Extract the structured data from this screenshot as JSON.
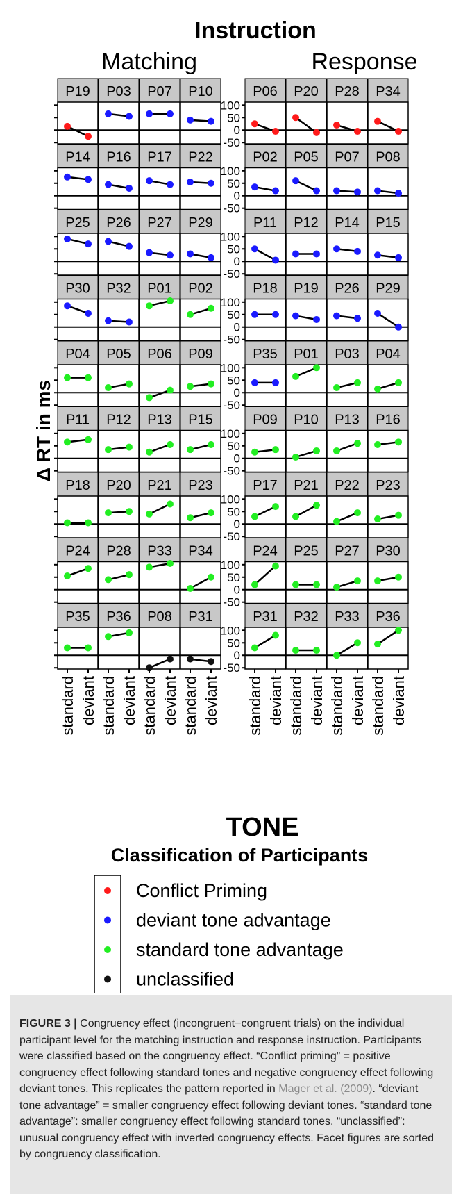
{
  "chart_data": {
    "type": "line",
    "title": "Instruction",
    "xlabel": "TONE",
    "ylabel": "Δ RT in ms",
    "x_categories": [
      "standard",
      "deviant"
    ],
    "y_ticks": [
      -50,
      0,
      50,
      100
    ],
    "ylim": [
      -55,
      112
    ],
    "panels": [
      {
        "name": "Matching",
        "rows": [
          [
            {
              "id": "P19",
              "class": "conflict",
              "values": [
                15,
                -25
              ]
            },
            {
              "id": "P03",
              "class": "deviant",
              "values": [
                65,
                55
              ]
            },
            {
              "id": "P07",
              "class": "deviant",
              "values": [
                65,
                65
              ]
            },
            {
              "id": "P10",
              "class": "deviant",
              "values": [
                40,
                35
              ]
            }
          ],
          [
            {
              "id": "P14",
              "class": "deviant",
              "values": [
                75,
                65
              ]
            },
            {
              "id": "P16",
              "class": "deviant",
              "values": [
                45,
                30
              ]
            },
            {
              "id": "P17",
              "class": "deviant",
              "values": [
                60,
                45
              ]
            },
            {
              "id": "P22",
              "class": "deviant",
              "values": [
                55,
                50
              ]
            }
          ],
          [
            {
              "id": "P25",
              "class": "deviant",
              "values": [
                90,
                70
              ]
            },
            {
              "id": "P26",
              "class": "deviant",
              "values": [
                80,
                60
              ]
            },
            {
              "id": "P27",
              "class": "deviant",
              "values": [
                35,
                25
              ]
            },
            {
              "id": "P29",
              "class": "deviant",
              "values": [
                30,
                15
              ]
            }
          ],
          [
            {
              "id": "P30",
              "class": "deviant",
              "values": [
                85,
                55
              ]
            },
            {
              "id": "P32",
              "class": "deviant",
              "values": [
                25,
                20
              ]
            },
            {
              "id": "P01",
              "class": "standard",
              "values": [
                85,
                105
              ]
            },
            {
              "id": "P02",
              "class": "standard",
              "values": [
                50,
                75
              ]
            }
          ],
          [
            {
              "id": "P04",
              "class": "standard",
              "values": [
                60,
                60
              ]
            },
            {
              "id": "P05",
              "class": "standard",
              "values": [
                20,
                35
              ]
            },
            {
              "id": "P06",
              "class": "standard",
              "values": [
                -20,
                10
              ]
            },
            {
              "id": "P09",
              "class": "standard",
              "values": [
                25,
                35
              ]
            }
          ],
          [
            {
              "id": "P11",
              "class": "standard",
              "values": [
                65,
                75
              ]
            },
            {
              "id": "P12",
              "class": "standard",
              "values": [
                35,
                45
              ]
            },
            {
              "id": "P13",
              "class": "standard",
              "values": [
                25,
                55
              ]
            },
            {
              "id": "P15",
              "class": "standard",
              "values": [
                35,
                55
              ]
            }
          ],
          [
            {
              "id": "P18",
              "class": "standard",
              "values": [
                5,
                5
              ]
            },
            {
              "id": "P20",
              "class": "standard",
              "values": [
                45,
                50
              ]
            },
            {
              "id": "P21",
              "class": "standard",
              "values": [
                40,
                80
              ]
            },
            {
              "id": "P23",
              "class": "standard",
              "values": [
                25,
                45
              ]
            }
          ],
          [
            {
              "id": "P24",
              "class": "standard",
              "values": [
                55,
                85
              ]
            },
            {
              "id": "P28",
              "class": "standard",
              "values": [
                40,
                60
              ]
            },
            {
              "id": "P33",
              "class": "standard",
              "values": [
                90,
                105
              ]
            },
            {
              "id": "P34",
              "class": "standard",
              "values": [
                5,
                50
              ]
            }
          ],
          [
            {
              "id": "P35",
              "class": "standard",
              "values": [
                30,
                30
              ]
            },
            {
              "id": "P36",
              "class": "standard",
              "values": [
                75,
                90
              ]
            },
            {
              "id": "P08",
              "class": "unclassified",
              "values": [
                -50,
                -15
              ]
            },
            {
              "id": "P31",
              "class": "unclassified",
              "values": [
                -15,
                -25
              ]
            }
          ]
        ]
      },
      {
        "name": "Response",
        "rows": [
          [
            {
              "id": "P06",
              "class": "conflict",
              "values": [
                25,
                -5
              ]
            },
            {
              "id": "P20",
              "class": "conflict",
              "values": [
                50,
                -10
              ]
            },
            {
              "id": "P28",
              "class": "conflict",
              "values": [
                20,
                -5
              ]
            },
            {
              "id": "P34",
              "class": "conflict",
              "values": [
                35,
                -5
              ]
            }
          ],
          [
            {
              "id": "P02",
              "class": "deviant",
              "values": [
                35,
                20
              ]
            },
            {
              "id": "P05",
              "class": "deviant",
              "values": [
                60,
                20
              ]
            },
            {
              "id": "P07",
              "class": "deviant",
              "values": [
                20,
                15
              ]
            },
            {
              "id": "P08",
              "class": "deviant",
              "values": [
                20,
                10
              ]
            }
          ],
          [
            {
              "id": "P11",
              "class": "deviant",
              "values": [
                50,
                5
              ]
            },
            {
              "id": "P12",
              "class": "deviant",
              "values": [
                30,
                30
              ]
            },
            {
              "id": "P14",
              "class": "deviant",
              "values": [
                50,
                40
              ]
            },
            {
              "id": "P15",
              "class": "deviant",
              "values": [
                25,
                15
              ]
            }
          ],
          [
            {
              "id": "P18",
              "class": "deviant",
              "values": [
                50,
                50
              ]
            },
            {
              "id": "P19",
              "class": "deviant",
              "values": [
                45,
                30
              ]
            },
            {
              "id": "P26",
              "class": "deviant",
              "values": [
                45,
                35
              ]
            },
            {
              "id": "P29",
              "class": "deviant",
              "values": [
                55,
                0
              ]
            }
          ],
          [
            {
              "id": "P35",
              "class": "deviant",
              "values": [
                40,
                40
              ]
            },
            {
              "id": "P01",
              "class": "standard",
              "values": [
                65,
                100
              ]
            },
            {
              "id": "P03",
              "class": "standard",
              "values": [
                20,
                40
              ]
            },
            {
              "id": "P04",
              "class": "standard",
              "values": [
                15,
                40
              ]
            }
          ],
          [
            {
              "id": "P09",
              "class": "standard",
              "values": [
                25,
                35
              ]
            },
            {
              "id": "P10",
              "class": "standard",
              "values": [
                5,
                30
              ]
            },
            {
              "id": "P13",
              "class": "standard",
              "values": [
                30,
                60
              ]
            },
            {
              "id": "P16",
              "class": "standard",
              "values": [
                55,
                65
              ]
            }
          ],
          [
            {
              "id": "P17",
              "class": "standard",
              "values": [
                30,
                70
              ]
            },
            {
              "id": "P21",
              "class": "standard",
              "values": [
                30,
                75
              ]
            },
            {
              "id": "P22",
              "class": "standard",
              "values": [
                10,
                45
              ]
            },
            {
              "id": "P23",
              "class": "standard",
              "values": [
                20,
                35
              ]
            }
          ],
          [
            {
              "id": "P24",
              "class": "standard",
              "values": [
                20,
                95
              ]
            },
            {
              "id": "P25",
              "class": "standard",
              "values": [
                20,
                20
              ]
            },
            {
              "id": "P27",
              "class": "standard",
              "values": [
                10,
                35
              ]
            },
            {
              "id": "P30",
              "class": "standard",
              "values": [
                35,
                50
              ]
            }
          ],
          [
            {
              "id": "P31",
              "class": "standard",
              "values": [
                30,
                80
              ]
            },
            {
              "id": "P32",
              "class": "standard",
              "values": [
                20,
                20
              ]
            },
            {
              "id": "P33",
              "class": "standard",
              "values": [
                0,
                50
              ]
            },
            {
              "id": "P36",
              "class": "standard",
              "values": [
                45,
                100
              ]
            }
          ]
        ]
      }
    ],
    "legend": {
      "title": "Classification of Participants",
      "placement": "bottom",
      "entries": [
        {
          "key": "conflict",
          "label": "Conflict Priming",
          "color": "#ff1a1a"
        },
        {
          "key": "deviant",
          "label": "deviant tone advantage",
          "color": "#1a1aff"
        },
        {
          "key": "standard",
          "label": "standard tone advantage",
          "color": "#22ee22"
        },
        {
          "key": "unclassified",
          "label": "unclassified",
          "color": "#111111"
        }
      ]
    },
    "strip_color": "#c8c8c8"
  },
  "caption": {
    "label": "FIGURE 3 |",
    "text_before": " Congruency effect (incongruent−congruent trials) on the individual participant level for the matching instruction and response instruction. Participants were classified based on the congruency effect. “Conflict priming” = positive congruency effect following standard tones and negative congruency effect following deviant tones. This replicates the pattern reported in ",
    "reference": "Mager et al. (2009)",
    "text_after": ". “deviant tone advantage” = smaller congruency effect following deviant tones. “standard tone advantage”: smaller congruency effect following standard tones. “unclassified”: unusual congruency effect with inverted congruency effects. Facet figures are sorted by congruency classification."
  }
}
